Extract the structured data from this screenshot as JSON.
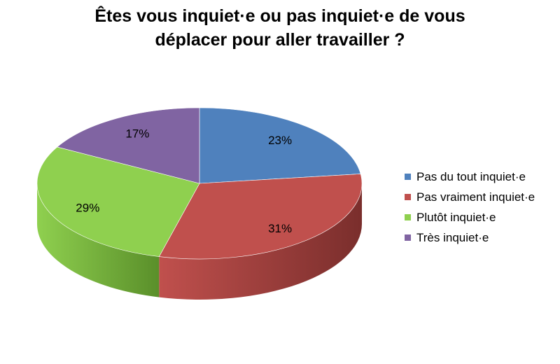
{
  "title": {
    "line1": "Êtes vous inquiet·e ou pas inquiet·e de vous",
    "line2": "déplacer pour aller travailler ?"
  },
  "chart_data": {
    "type": "pie",
    "style": "3d",
    "title": "Êtes vous inquiet·e ou pas inquiet·e de vous déplacer pour aller travailler ?",
    "categories": [
      "Pas du tout inquiet·e",
      "Pas vraiment inquiet·e",
      "Plutôt inquiet·e",
      "Très inquiet·e"
    ],
    "values": [
      23,
      31,
      29,
      17
    ],
    "labels": [
      "23%",
      "31%",
      "29%",
      "17%"
    ],
    "unit": "%",
    "colors": [
      "#4f81bd",
      "#c0504d",
      "#8fd04f",
      "#8064a2"
    ],
    "side_colors": [
      "#2f5583",
      "#7a2e2c",
      "#5a8f2a",
      "#503c6e"
    ],
    "legend_position": "right"
  }
}
